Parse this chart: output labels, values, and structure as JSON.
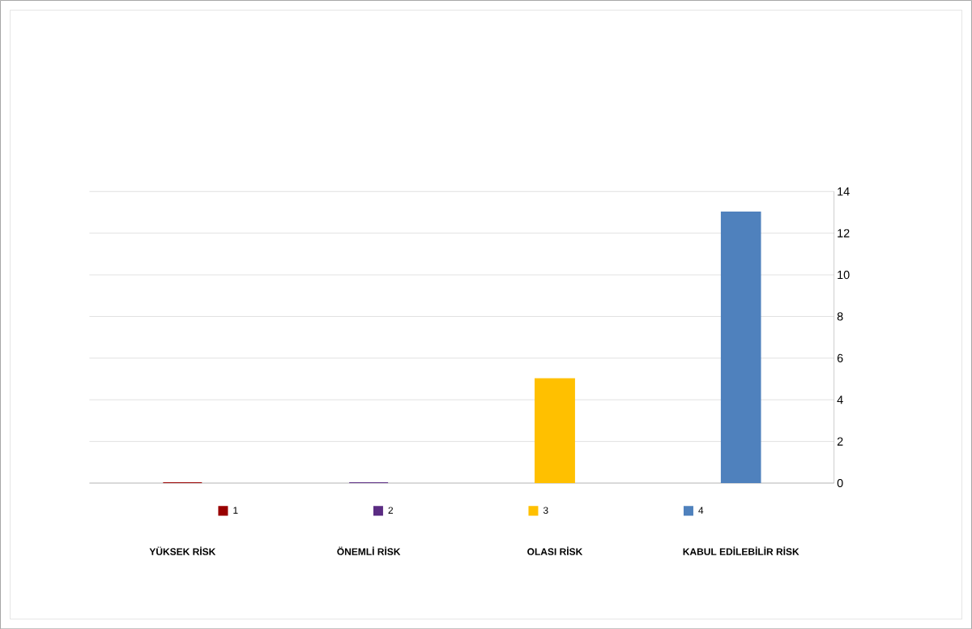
{
  "chart_data": {
    "type": "bar",
    "categories": [
      "YÜKSEK RİSK",
      "ÖNEMLİ RİSK",
      "OLASI RİSK",
      "KABUL EDİLEBİLİR RİSK"
    ],
    "series": [
      {
        "name": "1",
        "color": "#990000",
        "values": [
          0,
          null,
          null,
          null
        ]
      },
      {
        "name": "2",
        "color": "#5b2c83",
        "values": [
          null,
          0,
          null,
          null
        ]
      },
      {
        "name": "3",
        "color": "#ffc000",
        "values": [
          null,
          null,
          5,
          null
        ]
      },
      {
        "name": "4",
        "color": "#4f81bd",
        "values": [
          null,
          null,
          null,
          13
        ]
      }
    ],
    "ylim": [
      0,
      14
    ],
    "yticks": [
      0,
      2,
      4,
      6,
      8,
      10,
      12,
      14
    ],
    "grid": "y",
    "legend": "bottom"
  }
}
